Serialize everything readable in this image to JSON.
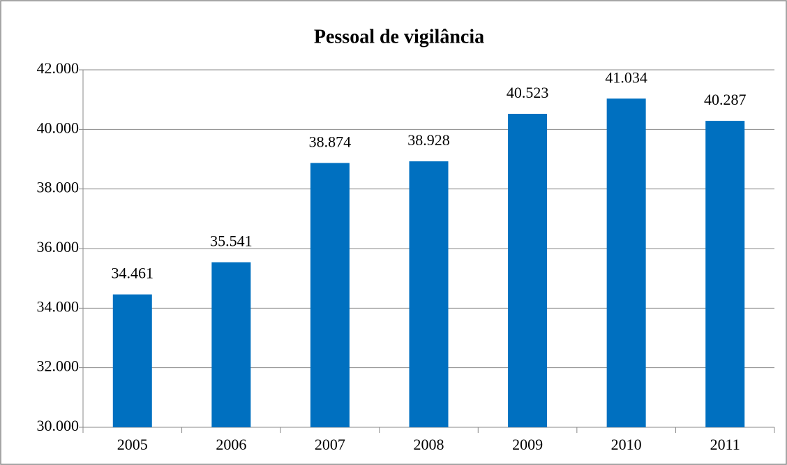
{
  "chart_data": {
    "type": "bar",
    "title": "Pessoal de vigilância",
    "categories": [
      "2005",
      "2006",
      "2007",
      "2008",
      "2009",
      "2010",
      "2011"
    ],
    "values": [
      34461,
      35541,
      38874,
      38928,
      40523,
      41034,
      40287
    ],
    "value_labels": [
      "34.461",
      "35.541",
      "38.874",
      "38.928",
      "40.523",
      "41.034",
      "40.287"
    ],
    "color": "#0070c0",
    "ylim": [
      30000,
      42000
    ],
    "yticks": [
      {
        "value": 30000,
        "label": "30.000"
      },
      {
        "value": 32000,
        "label": "32.000"
      },
      {
        "value": 34000,
        "label": "34.000"
      },
      {
        "value": 36000,
        "label": "36.000"
      },
      {
        "value": 38000,
        "label": "38.000"
      },
      {
        "value": 40000,
        "label": "40.000"
      },
      {
        "value": 42000,
        "label": "42.000"
      }
    ],
    "grid": true
  }
}
